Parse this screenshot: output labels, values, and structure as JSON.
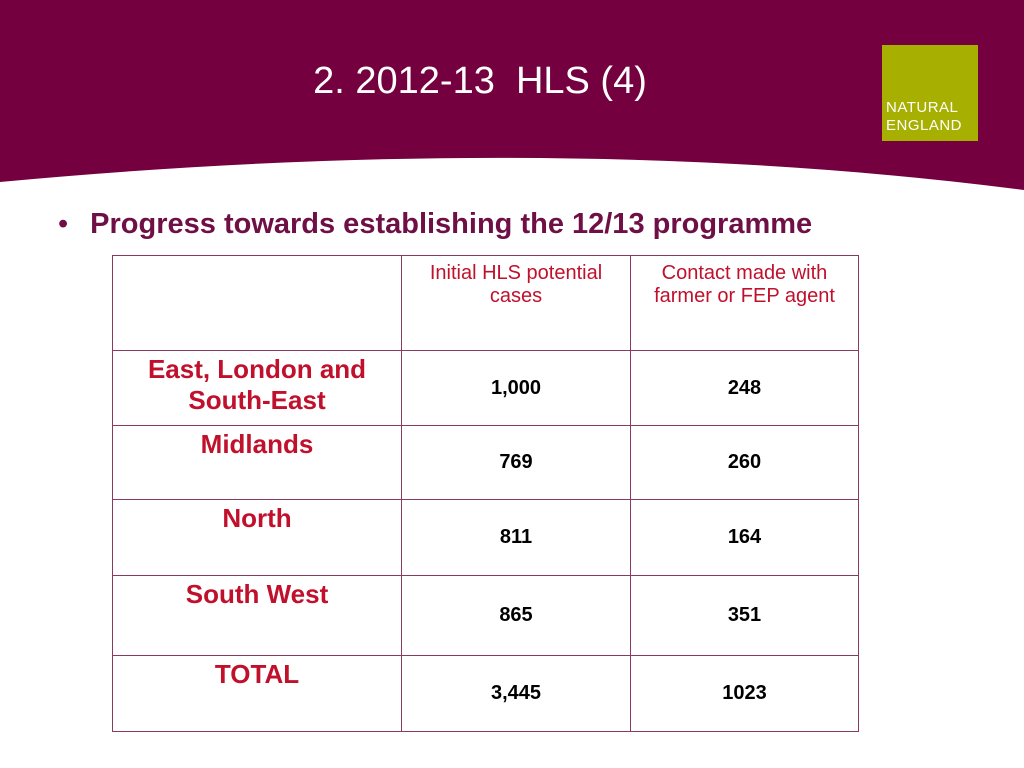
{
  "header": {
    "title": "2. 2012-13  HLS (4)",
    "logo": [
      "NATURAL",
      "ENGLAND"
    ]
  },
  "bullet": "Progress towards establishing the 12/13 programme",
  "table": {
    "columns": [
      "Initial HLS potential cases",
      "Contact made with farmer or FEP agent"
    ],
    "rows": [
      [
        "East, London and South-East",
        "1,000",
        "248"
      ],
      [
        "Midlands",
        "769",
        "260"
      ],
      [
        "North",
        "811",
        "164"
      ],
      [
        "South West",
        "865",
        "351"
      ],
      [
        "TOTAL",
        "3,445",
        "1023"
      ]
    ]
  }
}
